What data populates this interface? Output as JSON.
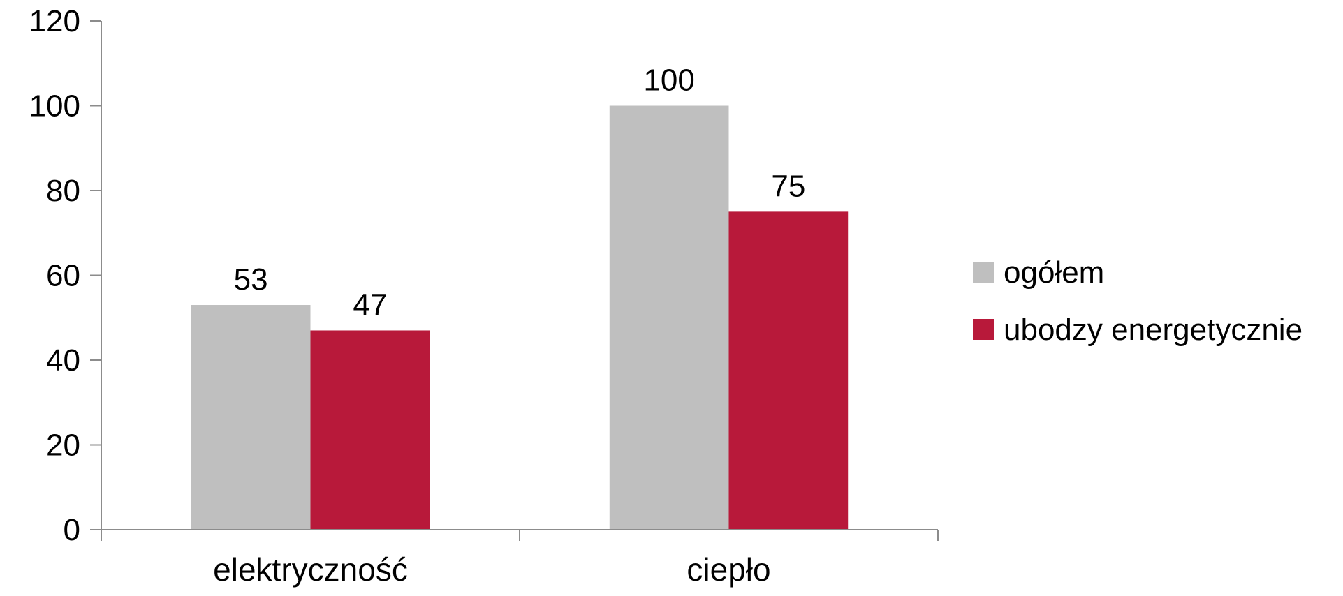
{
  "chart_data": {
    "type": "bar",
    "categories": [
      "elektryczność",
      "ciepło"
    ],
    "series": [
      {
        "name": "ogółem",
        "values": [
          53,
          100
        ],
        "color": "#bfbfbf"
      },
      {
        "name": "ubodzy energetycznie",
        "values": [
          47,
          75
        ],
        "color": "#b8193a"
      }
    ],
    "yticks": [
      "0",
      "20",
      "40",
      "60",
      "80",
      "100",
      "120"
    ],
    "ylim": [
      0,
      120
    ],
    "grid": false,
    "legend": "right",
    "title": "",
    "xlabel": "",
    "ylabel": ""
  }
}
